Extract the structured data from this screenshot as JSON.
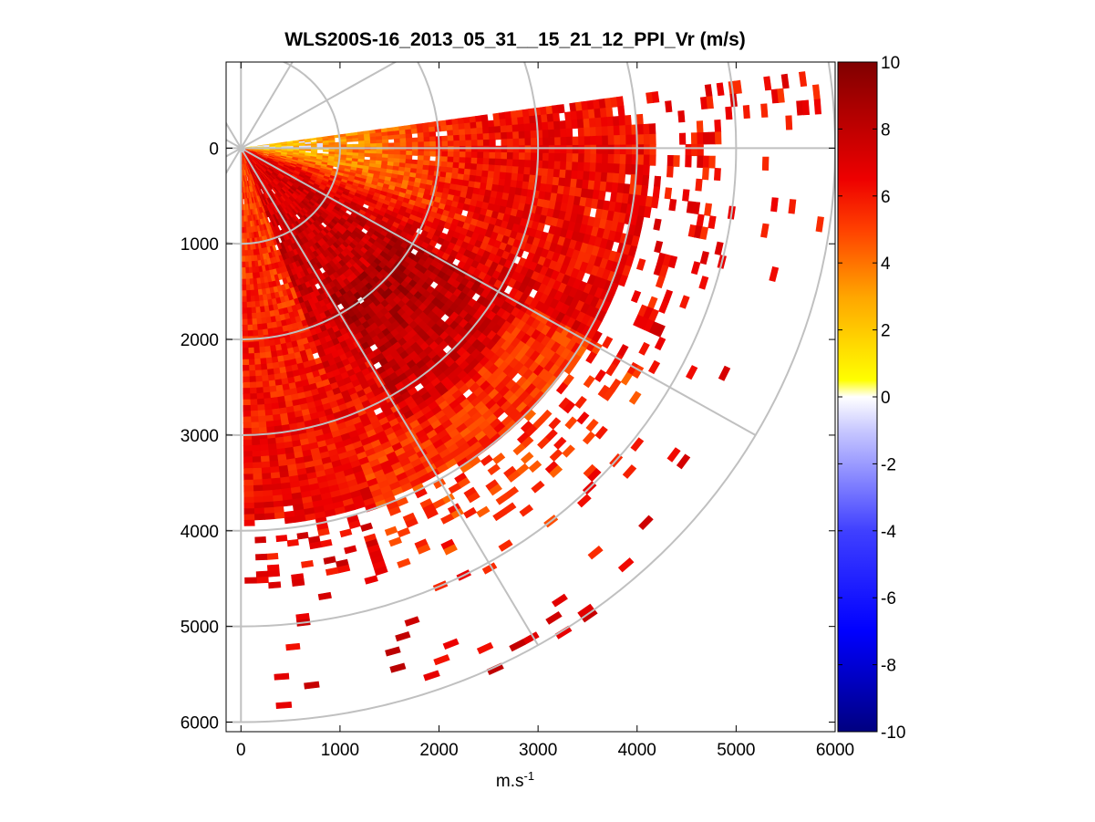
{
  "chart_data": {
    "type": "heatmap",
    "title": "WLS200S-16_2013_05_31__15_21_12_PPI_Vr (m/s)",
    "xlabel_base": "m.s",
    "xlabel_exp": "-1",
    "ylabel": "",
    "xlim": [
      -150,
      6000
    ],
    "ylim": [
      -900,
      6100
    ],
    "y_reversed": true,
    "xticks": [
      0,
      1000,
      2000,
      3000,
      4000,
      5000,
      6000
    ],
    "xtick_labels": [
      "0",
      "1000",
      "2000",
      "3000",
      "4000",
      "5000",
      "6000"
    ],
    "yticks": [
      0,
      1000,
      2000,
      3000,
      4000,
      5000,
      6000
    ],
    "ytick_labels": [
      "0",
      "1000",
      "2000",
      "3000",
      "4000",
      "5000",
      "6000"
    ],
    "polar_grid": {
      "origin": [
        0,
        0
      ],
      "range_rings": [
        1000,
        2000,
        3000,
        4000,
        5000,
        6000
      ],
      "spokes_deg": [
        0,
        30,
        60,
        90,
        120,
        150,
        180,
        210,
        240,
        270,
        300,
        330
      ],
      "spoke_length": 6000
    },
    "scan_sector": {
      "angle_start_deg": -8,
      "angle_end_deg": 89,
      "range_min": 50,
      "range_max": 6000,
      "dense_range_max": 4100
    },
    "colorbar": {
      "min": -10,
      "max": 10,
      "ticks": [
        -10,
        -8,
        -6,
        -4,
        -2,
        0,
        2,
        4,
        6,
        8,
        10
      ],
      "tick_labels": [
        "-10",
        "-8",
        "-6",
        "-4",
        "-2",
        "0",
        "2",
        "4",
        "6",
        "8",
        "10"
      ],
      "colormap": "blue-white-red (negative blue, near-zero white, positive yellow-orange-red-darkred)",
      "stops": [
        {
          "value": -10,
          "color": "#000080"
        },
        {
          "value": -7,
          "color": "#0000ff"
        },
        {
          "value": -4,
          "color": "#4040ff"
        },
        {
          "value": -1,
          "color": "#c8c8ff"
        },
        {
          "value": 0,
          "color": "#ffffff"
        },
        {
          "value": 0.5,
          "color": "#ffff00"
        },
        {
          "value": 3,
          "color": "#ffa500"
        },
        {
          "value": 5,
          "color": "#ff4000"
        },
        {
          "value": 6.5,
          "color": "#ee0000"
        },
        {
          "value": 8.5,
          "color": "#b00000"
        },
        {
          "value": 10,
          "color": "#800000"
        }
      ]
    },
    "data_description_values": {
      "near_zero_angle_vr": 1.5,
      "far_range_vr": 7.5,
      "wide_angle_vr": 6.5
    }
  }
}
